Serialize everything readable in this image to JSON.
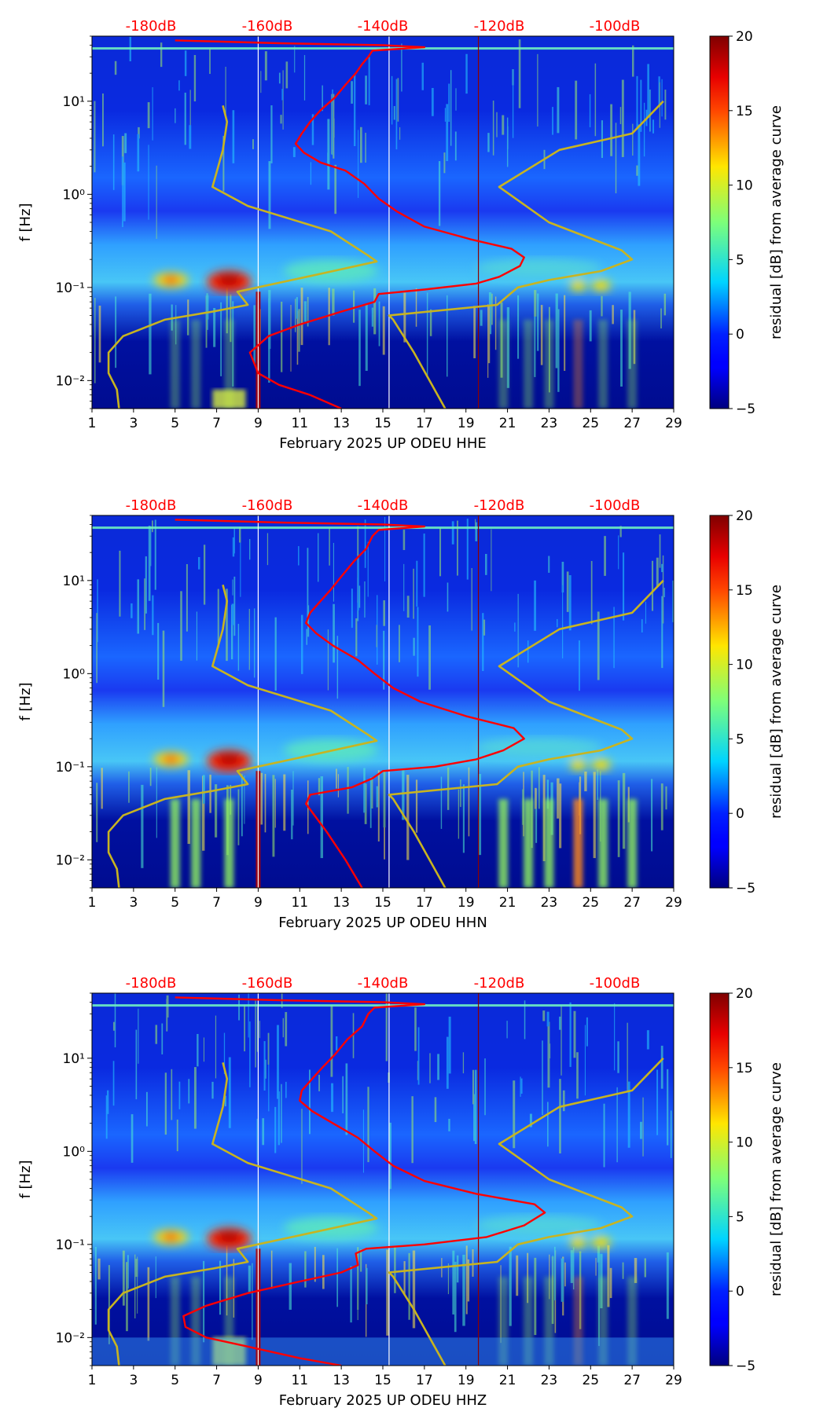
{
  "chart_data": [
    {
      "type": "heatmap",
      "title": "",
      "xlabel": "February 2025 UP ODEU  HHE",
      "ylabel": "f [Hz]",
      "x_ticks": [
        "1",
        "3",
        "5",
        "7",
        "9",
        "11",
        "13",
        "15",
        "17",
        "19",
        "21",
        "23",
        "25",
        "27",
        "29"
      ],
      "y_ticks": [
        "10⁻²",
        "10⁻¹",
        "10⁰",
        "10¹"
      ],
      "xlim": [
        1,
        29
      ],
      "ylim_hz": [
        0.005,
        50
      ],
      "top_axis_labels": [
        "-180dB",
        "-160dB",
        "-140dB",
        "-120dB",
        "-100dB"
      ],
      "top_axis_color": "#ff0000",
      "colorbar": {
        "label": "residual [dB] from average curve",
        "range": [
          -5,
          20
        ],
        "ticks": [
          "−5",
          "0",
          "5",
          "10",
          "15",
          "20"
        ],
        "colormap": "jet"
      },
      "vertical_lines": [
        {
          "name": "white-line-1",
          "x": 9.0,
          "color": "#ffffff"
        },
        {
          "name": "white-line-2",
          "x": 15.3,
          "color": "#ffffff"
        },
        {
          "name": "darkred-line",
          "x": 19.6,
          "color": "#8b0000"
        }
      ],
      "series": [
        {
          "name": "average-psd-curve",
          "color": "#ff0000",
          "points": [
            [
              13.0,
              0.005
            ],
            [
              11.5,
              0.007
            ],
            [
              10.0,
              0.009
            ],
            [
              9.0,
              0.012
            ],
            [
              8.6,
              0.02
            ],
            [
              9.5,
              0.03
            ],
            [
              11.0,
              0.04
            ],
            [
              13.0,
              0.055
            ],
            [
              14.6,
              0.07
            ],
            [
              14.8,
              0.085
            ],
            [
              17.0,
              0.095
            ],
            [
              19.5,
              0.11
            ],
            [
              20.6,
              0.13
            ],
            [
              21.6,
              0.17
            ],
            [
              21.8,
              0.21
            ],
            [
              21.2,
              0.26
            ],
            [
              19.2,
              0.33
            ],
            [
              17.0,
              0.45
            ],
            [
              15.7,
              0.65
            ],
            [
              14.8,
              0.9
            ],
            [
              14.1,
              1.3
            ],
            [
              13.2,
              1.8
            ],
            [
              12.0,
              2.2
            ],
            [
              11.2,
              2.8
            ],
            [
              10.8,
              3.5
            ],
            [
              11.1,
              4.5
            ],
            [
              11.5,
              6.0
            ],
            [
              12.0,
              8.0
            ],
            [
              12.7,
              11
            ],
            [
              13.2,
              15
            ],
            [
              13.7,
              20
            ],
            [
              14.0,
              25
            ],
            [
              14.3,
              30
            ],
            [
              14.5,
              35
            ],
            [
              17.0,
              38
            ],
            [
              15.0,
              40
            ],
            [
              10.0,
              42
            ],
            [
              5.0,
              45
            ]
          ]
        },
        {
          "name": "ptx-noise-boundary",
          "color": "#c8b420",
          "points": [
            [
              2.3,
              0.005
            ],
            [
              2.2,
              0.008
            ],
            [
              1.8,
              0.012
            ],
            [
              1.8,
              0.02
            ],
            [
              2.5,
              0.03
            ],
            [
              4.5,
              0.045
            ],
            [
              6.8,
              0.055
            ],
            [
              8.5,
              0.065
            ],
            [
              8.0,
              0.09
            ],
            [
              12.0,
              0.14
            ],
            [
              14.7,
              0.19
            ],
            [
              14.3,
              0.22
            ],
            [
              12.5,
              0.4
            ],
            [
              8.5,
              0.75
            ],
            [
              6.8,
              1.2
            ],
            [
              7.3,
              3.0
            ],
            [
              7.5,
              6.0
            ],
            [
              7.3,
              9.0
            ]
          ]
        },
        {
          "name": "nlnm-boundary",
          "color": "#c8b420",
          "points": [
            [
              18.0,
              0.005
            ],
            [
              16.5,
              0.02
            ],
            [
              15.5,
              0.045
            ],
            [
              15.3,
              0.05
            ],
            [
              20.5,
              0.065
            ],
            [
              21.5,
              0.1
            ],
            [
              23.0,
              0.12
            ],
            [
              25.5,
              0.15
            ],
            [
              27.0,
              0.2
            ],
            [
              26.5,
              0.25
            ],
            [
              23.0,
              0.5
            ],
            [
              20.6,
              1.2
            ],
            [
              23.5,
              3.0
            ],
            [
              27.0,
              4.5
            ],
            [
              28.5,
              10
            ]
          ]
        }
      ]
    },
    {
      "type": "heatmap",
      "title": "",
      "xlabel": "February 2025 UP ODEU  HHN",
      "ylabel": "f [Hz]",
      "x_ticks": [
        "1",
        "3",
        "5",
        "7",
        "9",
        "11",
        "13",
        "15",
        "17",
        "19",
        "21",
        "23",
        "25",
        "27",
        "29"
      ],
      "y_ticks": [
        "10⁻²",
        "10⁻¹",
        "10⁰",
        "10¹"
      ],
      "xlim": [
        1,
        29
      ],
      "ylim_hz": [
        0.005,
        50
      ],
      "top_axis_labels": [
        "-180dB",
        "-160dB",
        "-140dB",
        "-120dB",
        "-100dB"
      ],
      "top_axis_color": "#ff0000",
      "colorbar": {
        "label": "residual [dB] from average curve",
        "range": [
          -5,
          20
        ],
        "ticks": [
          "−5",
          "0",
          "5",
          "10",
          "15",
          "20"
        ],
        "colormap": "jet"
      },
      "vertical_lines": [
        {
          "name": "white-line-1",
          "x": 9.0,
          "color": "#ffffff"
        },
        {
          "name": "white-line-2",
          "x": 15.3,
          "color": "#ffffff"
        },
        {
          "name": "darkred-line",
          "x": 19.6,
          "color": "#8b0000"
        }
      ],
      "series": [
        {
          "name": "average-psd-curve",
          "color": "#ff0000",
          "points": [
            [
              14.0,
              0.005
            ],
            [
              13.2,
              0.01
            ],
            [
              12.3,
              0.02
            ],
            [
              11.3,
              0.04
            ],
            [
              11.5,
              0.05
            ],
            [
              13.5,
              0.06
            ],
            [
              14.5,
              0.075
            ],
            [
              15.0,
              0.09
            ],
            [
              17.5,
              0.1
            ],
            [
              19.5,
              0.12
            ],
            [
              20.8,
              0.15
            ],
            [
              21.8,
              0.2
            ],
            [
              21.3,
              0.26
            ],
            [
              19.0,
              0.35
            ],
            [
              16.8,
              0.5
            ],
            [
              15.5,
              0.7
            ],
            [
              14.6,
              1.0
            ],
            [
              13.8,
              1.4
            ],
            [
              12.6,
              2.0
            ],
            [
              11.8,
              2.7
            ],
            [
              11.3,
              3.5
            ],
            [
              11.5,
              4.5
            ],
            [
              12.0,
              6.0
            ],
            [
              12.5,
              8.0
            ],
            [
              13.0,
              11
            ],
            [
              13.6,
              16
            ],
            [
              14.2,
              22
            ],
            [
              14.5,
              30
            ],
            [
              14.8,
              35
            ],
            [
              17.0,
              38
            ],
            [
              15.0,
              40
            ],
            [
              10.0,
              42
            ],
            [
              5.0,
              45
            ]
          ]
        },
        {
          "name": "ptx-noise-boundary",
          "color": "#c8b420",
          "points": [
            [
              2.3,
              0.005
            ],
            [
              2.2,
              0.008
            ],
            [
              1.8,
              0.012
            ],
            [
              1.8,
              0.02
            ],
            [
              2.5,
              0.03
            ],
            [
              4.5,
              0.045
            ],
            [
              6.8,
              0.055
            ],
            [
              8.5,
              0.065
            ],
            [
              8.0,
              0.09
            ],
            [
              12.0,
              0.14
            ],
            [
              14.7,
              0.19
            ],
            [
              14.3,
              0.22
            ],
            [
              12.5,
              0.4
            ],
            [
              8.5,
              0.75
            ],
            [
              6.8,
              1.2
            ],
            [
              7.3,
              3.0
            ],
            [
              7.5,
              6.0
            ],
            [
              7.3,
              9.0
            ]
          ]
        },
        {
          "name": "nlnm-boundary",
          "color": "#c8b420",
          "points": [
            [
              18.0,
              0.005
            ],
            [
              16.5,
              0.02
            ],
            [
              15.5,
              0.045
            ],
            [
              15.3,
              0.05
            ],
            [
              20.5,
              0.065
            ],
            [
              21.5,
              0.1
            ],
            [
              23.0,
              0.12
            ],
            [
              25.5,
              0.15
            ],
            [
              27.0,
              0.2
            ],
            [
              26.5,
              0.25
            ],
            [
              23.0,
              0.5
            ],
            [
              20.6,
              1.2
            ],
            [
              23.5,
              3.0
            ],
            [
              27.0,
              4.5
            ],
            [
              28.5,
              10
            ]
          ]
        }
      ]
    },
    {
      "type": "heatmap",
      "title": "",
      "xlabel": "February 2025 UP ODEU  HHZ",
      "ylabel": "f [Hz]",
      "x_ticks": [
        "1",
        "3",
        "5",
        "7",
        "9",
        "11",
        "13",
        "15",
        "17",
        "19",
        "21",
        "23",
        "25",
        "27",
        "29"
      ],
      "y_ticks": [
        "10⁻²",
        "10⁻¹",
        "10⁰",
        "10¹"
      ],
      "xlim": [
        1,
        29
      ],
      "ylim_hz": [
        0.005,
        50
      ],
      "top_axis_labels": [
        "-180dB",
        "-160dB",
        "-140dB",
        "-120dB",
        "-100dB"
      ],
      "top_axis_color": "#ff0000",
      "colorbar": {
        "label": "residual [dB] from average curve",
        "range": [
          -5,
          20
        ],
        "ticks": [
          "−5",
          "0",
          "5",
          "10",
          "15",
          "20"
        ],
        "colormap": "jet"
      },
      "vertical_lines": [
        {
          "name": "white-line-1",
          "x": 9.0,
          "color": "#ffffff"
        },
        {
          "name": "white-line-2",
          "x": 15.3,
          "color": "#ffffff"
        },
        {
          "name": "darkred-line",
          "x": 19.6,
          "color": "#8b0000"
        }
      ],
      "series": [
        {
          "name": "average-psd-curve",
          "color": "#ff0000",
          "points": [
            [
              13.0,
              0.005
            ],
            [
              11.0,
              0.006
            ],
            [
              8.5,
              0.008
            ],
            [
              6.5,
              0.01
            ],
            [
              5.5,
              0.013
            ],
            [
              5.4,
              0.017
            ],
            [
              6.5,
              0.022
            ],
            [
              8.5,
              0.03
            ],
            [
              11.0,
              0.04
            ],
            [
              13.0,
              0.05
            ],
            [
              13.8,
              0.06
            ],
            [
              13.7,
              0.08
            ],
            [
              14.2,
              0.09
            ],
            [
              17.0,
              0.1
            ],
            [
              20.0,
              0.12
            ],
            [
              21.8,
              0.16
            ],
            [
              22.8,
              0.22
            ],
            [
              22.3,
              0.27
            ],
            [
              19.5,
              0.35
            ],
            [
              17.0,
              0.48
            ],
            [
              15.5,
              0.7
            ],
            [
              14.6,
              1.0
            ],
            [
              13.8,
              1.4
            ],
            [
              12.6,
              2.0
            ],
            [
              11.6,
              2.7
            ],
            [
              11.0,
              3.5
            ],
            [
              11.1,
              4.5
            ],
            [
              11.6,
              6.0
            ],
            [
              12.1,
              8.0
            ],
            [
              12.7,
              11
            ],
            [
              13.3,
              16
            ],
            [
              14.0,
              22
            ],
            [
              14.3,
              30
            ],
            [
              14.6,
              35
            ],
            [
              17.0,
              38
            ],
            [
              15.0,
              40
            ],
            [
              10.0,
              42
            ],
            [
              5.0,
              45
            ]
          ]
        },
        {
          "name": "ptx-noise-boundary",
          "color": "#c8b420",
          "points": [
            [
              2.3,
              0.005
            ],
            [
              2.2,
              0.008
            ],
            [
              1.8,
              0.012
            ],
            [
              1.8,
              0.02
            ],
            [
              2.5,
              0.03
            ],
            [
              4.5,
              0.045
            ],
            [
              6.8,
              0.055
            ],
            [
              8.5,
              0.065
            ],
            [
              8.0,
              0.09
            ],
            [
              12.0,
              0.14
            ],
            [
              14.7,
              0.19
            ],
            [
              14.3,
              0.22
            ],
            [
              12.5,
              0.4
            ],
            [
              8.5,
              0.75
            ],
            [
              6.8,
              1.2
            ],
            [
              7.3,
              3.0
            ],
            [
              7.5,
              6.0
            ],
            [
              7.3,
              9.0
            ]
          ]
        },
        {
          "name": "nlnm-boundary",
          "color": "#c8b420",
          "points": [
            [
              18.0,
              0.005
            ],
            [
              16.5,
              0.02
            ],
            [
              15.5,
              0.045
            ],
            [
              15.3,
              0.05
            ],
            [
              20.5,
              0.065
            ],
            [
              21.5,
              0.1
            ],
            [
              23.0,
              0.12
            ],
            [
              25.5,
              0.15
            ],
            [
              27.0,
              0.2
            ],
            [
              26.5,
              0.25
            ],
            [
              23.0,
              0.5
            ],
            [
              20.6,
              1.2
            ],
            [
              23.5,
              3.0
            ],
            [
              27.0,
              4.5
            ],
            [
              28.5,
              10
            ]
          ]
        }
      ]
    }
  ]
}
